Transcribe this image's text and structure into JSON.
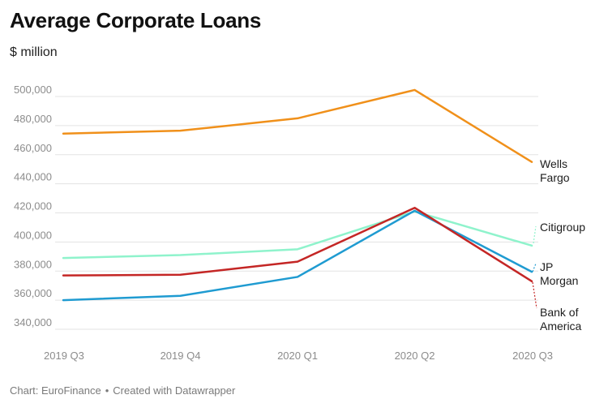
{
  "header": {
    "title": "Average Corporate Loans",
    "subtitle": "$ million"
  },
  "footer": {
    "chart_credit": "Chart: EuroFinance",
    "separator": "•",
    "created_with": "Created with Datawrapper"
  },
  "chart_data": {
    "type": "line",
    "title": "Average Corporate Loans",
    "subtitle": "$ million",
    "xlabel": "",
    "ylabel": "",
    "categories": [
      "2019 Q3",
      "2019 Q4",
      "2020 Q1",
      "2020 Q2",
      "2020 Q3"
    ],
    "ylim": [
      330000,
      510000
    ],
    "yticks": [
      340000,
      360000,
      380000,
      400000,
      420000,
      440000,
      460000,
      480000,
      500000
    ],
    "ytick_labels": [
      "340,000",
      "360,000",
      "380,000",
      "400,000",
      "420,000",
      "440,000",
      "460,000",
      "480,000",
      "500,000"
    ],
    "grid": true,
    "legend": "direct labels at line ends",
    "series": [
      {
        "name": "Wells Fargo",
        "label_lines": [
          "Wells",
          "Fargo"
        ],
        "color": "#f0901a",
        "values": [
          474500,
          476500,
          485000,
          504500,
          455000
        ]
      },
      {
        "name": "Citigroup",
        "label_lines": [
          "Citigroup"
        ],
        "color": "#8ff3cc",
        "values": [
          389000,
          391000,
          395000,
          421000,
          397500
        ]
      },
      {
        "name": "JP Morgan",
        "label_lines": [
          "JP",
          "Morgan"
        ],
        "color": "#1f9bd1",
        "values": [
          360000,
          363000,
          376000,
          421500,
          379500
        ]
      },
      {
        "name": "Bank of America",
        "label_lines": [
          "Bank of",
          "America"
        ],
        "color": "#c42625",
        "values": [
          377000,
          377500,
          386500,
          423500,
          373000
        ]
      }
    ]
  }
}
